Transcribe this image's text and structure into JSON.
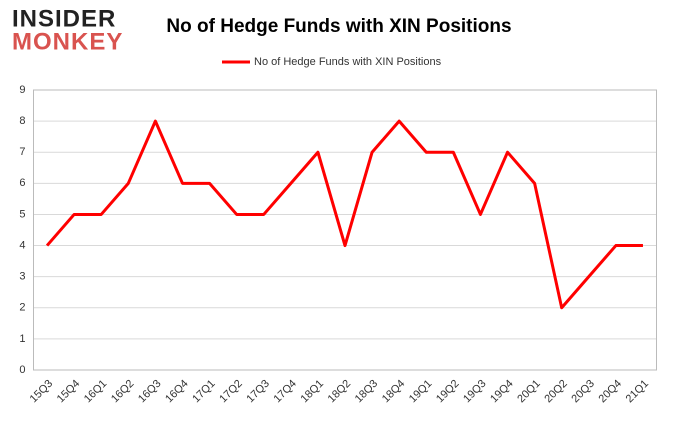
{
  "logo": {
    "line1": "INSIDER",
    "line2": "MONKEY"
  },
  "chart_data": {
    "type": "line",
    "title": "No of Hedge Funds with XIN Positions",
    "categories": [
      "15Q3",
      "15Q4",
      "16Q1",
      "16Q2",
      "16Q3",
      "16Q4",
      "17Q1",
      "17Q2",
      "17Q3",
      "17Q4",
      "18Q1",
      "18Q2",
      "18Q3",
      "18Q4",
      "19Q1",
      "19Q2",
      "19Q3",
      "19Q4",
      "20Q1",
      "20Q2",
      "20Q3",
      "20Q4",
      "21Q1"
    ],
    "series": [
      {
        "name": "No of Hedge Funds with XIN Positions",
        "color": "#ff0000",
        "values": [
          4,
          5,
          5,
          6,
          8,
          6,
          6,
          5,
          5,
          6,
          7,
          4,
          7,
          8,
          7,
          7,
          5,
          7,
          6,
          2,
          3,
          4,
          4
        ]
      }
    ],
    "ylim": [
      0,
      9
    ],
    "yticks": [
      0,
      1,
      2,
      3,
      4,
      5,
      6,
      7,
      8,
      9
    ],
    "grid": true,
    "legend": "top"
  }
}
